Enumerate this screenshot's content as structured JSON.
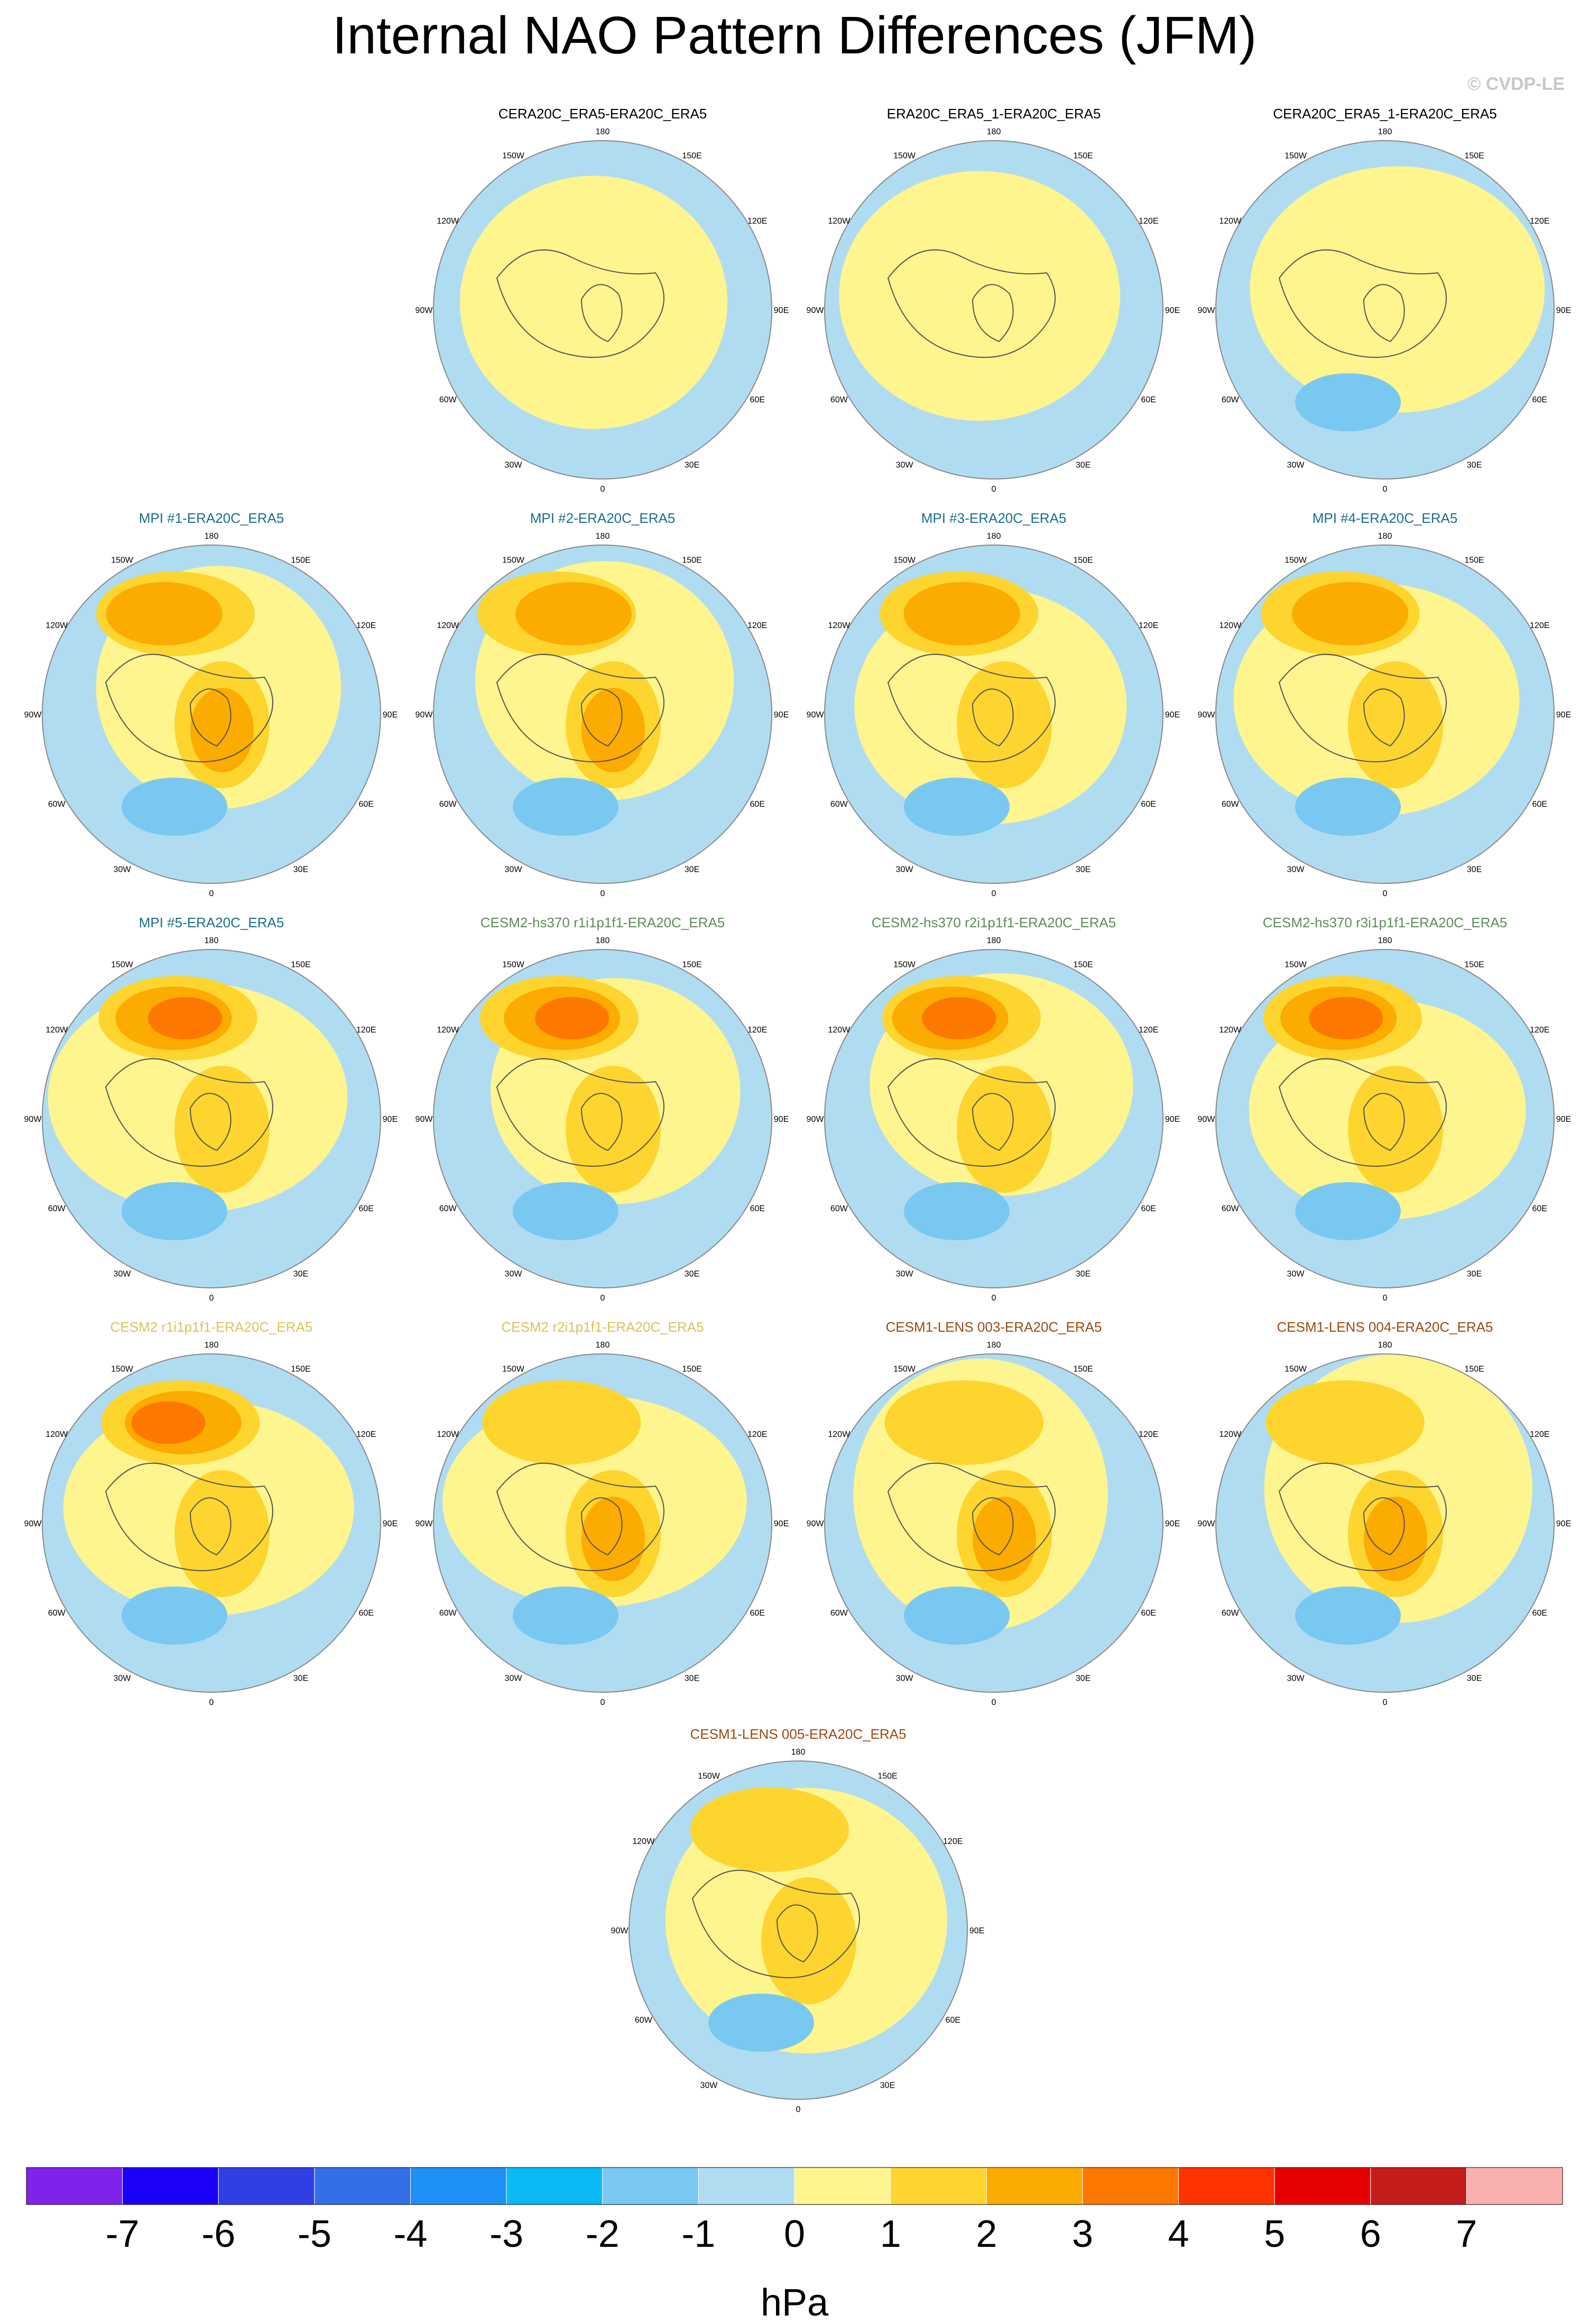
{
  "title": "Internal NAO Pattern Differences (JFM)",
  "credit": "© CVDP-LE",
  "chart_data": {
    "type": "contour-map-panels",
    "projection": "north polar stereographic",
    "variable_units": "hPa",
    "lon_labels": [
      "180",
      "150E",
      "120E",
      "90E",
      "60E",
      "30E",
      "0",
      "30W",
      "60W",
      "90W",
      "120W",
      "150W"
    ],
    "colorbar": {
      "levels": [
        -7,
        -6,
        -5,
        -4,
        -3,
        -2,
        -1,
        0,
        1,
        2,
        3,
        4,
        5,
        6,
        7
      ],
      "tick_labels": [
        "-7",
        "-6",
        "-5",
        "-4",
        "-3",
        "-2",
        "-1",
        "0",
        "1",
        "2",
        "3",
        "4",
        "5",
        "6",
        "7"
      ],
      "colors": [
        "#7f22ea",
        "#1b00f8",
        "#2f3fe4",
        "#3370e8",
        "#1f90f5",
        "#09baf6",
        "#79c8f2",
        "#b0dcf2",
        "#fff58e",
        "#fdd52e",
        "#fcab00",
        "#fd7800",
        "#fe3300",
        "#e60000",
        "#c61c1c",
        "#fbb0b0"
      ],
      "units": "hPa"
    },
    "panels": [
      {
        "title": "CERA20C_ERA5-ERA20C_ERA5",
        "title_color": "#000000",
        "row": 0,
        "col": 1
      },
      {
        "title": "ERA20C_ERA5_1-ERA20C_ERA5",
        "title_color": "#000000",
        "row": 0,
        "col": 2
      },
      {
        "title": "CERA20C_ERA5_1-ERA20C_ERA5",
        "title_color": "#000000",
        "row": 0,
        "col": 3
      },
      {
        "title": "MPI #1-ERA20C_ERA5",
        "title_color": "#1b6e8c",
        "row": 1,
        "col": 0
      },
      {
        "title": "MPI #2-ERA20C_ERA5",
        "title_color": "#1b6e8c",
        "row": 1,
        "col": 1
      },
      {
        "title": "MPI #3-ERA20C_ERA5",
        "title_color": "#1b6e8c",
        "row": 1,
        "col": 2
      },
      {
        "title": "MPI #4-ERA20C_ERA5",
        "title_color": "#1b6e8c",
        "row": 1,
        "col": 3
      },
      {
        "title": "MPI #5-ERA20C_ERA5",
        "title_color": "#1b6e8c",
        "row": 2,
        "col": 0
      },
      {
        "title": "CESM2-hs370 r1i1p1f1-ERA20C_ERA5",
        "title_color": "#5e8c5a",
        "row": 2,
        "col": 1
      },
      {
        "title": "CESM2-hs370 r2i1p1f1-ERA20C_ERA5",
        "title_color": "#5e8c5a",
        "row": 2,
        "col": 2
      },
      {
        "title": "CESM2-hs370 r3i1p1f1-ERA20C_ERA5",
        "title_color": "#5e8c5a",
        "row": 2,
        "col": 3
      },
      {
        "title": "CESM2 r1i1p1f1-ERA20C_ERA5",
        "title_color": "#d9c35e",
        "row": 3,
        "col": 0
      },
      {
        "title": "CESM2 r2i1p1f1-ERA20C_ERA5",
        "title_color": "#d9c35e",
        "row": 3,
        "col": 1
      },
      {
        "title": "CESM1-LENS 003-ERA20C_ERA5",
        "title_color": "#9c4a12",
        "row": 3,
        "col": 2
      },
      {
        "title": "CESM1-LENS 004-ERA20C_ERA5",
        "title_color": "#9c4a12",
        "row": 3,
        "col": 3
      },
      {
        "title": "CESM1-LENS 005-ERA20C_ERA5",
        "title_color": "#9c4a12",
        "row": 4,
        "col": 1.5
      }
    ]
  }
}
